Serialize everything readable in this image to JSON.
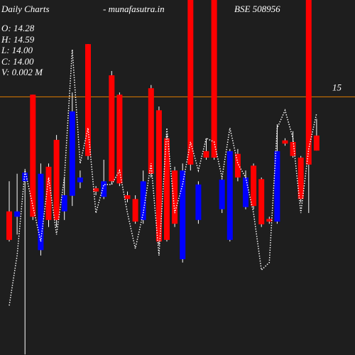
{
  "chart_data": {
    "type": "candlestick",
    "title": "Daily Charts",
    "subtitle": "-  munafasutra.in",
    "symbol": "BSE 508956",
    "info": [
      "O: 14.28",
      "H: 14.59",
      "L: 14.00",
      "C: 14.00",
      "V: 0.002  M"
    ],
    "ylim": [
      10.2,
      16.8
    ],
    "yticks": [
      15
    ],
    "tick_color": "#e07b00",
    "up_color": "#0000ff",
    "down_color": "#ff0000",
    "background": "#1e1e1e",
    "open": [
      12.87,
      12.77,
      13.43,
      15.04,
      12.15,
      13.7,
      14.2,
      12.87,
      13.16,
      13.41,
      15.98,
      13.3,
      13.14,
      15.4,
      15.04,
      13.17,
      13.1,
      12.71,
      15.16,
      14.75,
      14.23,
      13.63,
      11.98,
      16.8,
      12.71,
      13.99,
      16.8,
      12.91,
      12.34,
      13.94,
      12.95,
      13.72,
      13.47,
      12.73,
      12.68,
      14.19,
      14.16,
      13.87,
      16.8,
      14.28
    ],
    "high": [
      13.43,
      13.57,
      13.66,
      15.04,
      13.76,
      13.76,
      14.29,
      13.5,
      15.08,
      13.63,
      15.98,
      13.34,
      13.83,
      15.48,
      15.08,
      13.24,
      13.17,
      13.63,
      15.22,
      14.82,
      14.29,
      13.7,
      13.76,
      16.8,
      13.43,
      14.23,
      16.8,
      13.5,
      14.03,
      14.03,
      13.63,
      13.76,
      13.5,
      12.77,
      14.49,
      14.23,
      14.36,
      13.9,
      16.8,
      14.59
    ],
    "low": [
      12.31,
      12.44,
      10.21,
      12.71,
      12.05,
      12.58,
      12.58,
      12.71,
      12.97,
      13.3,
      13.83,
      13.17,
      13.1,
      13.37,
      13.34,
      13.04,
      12.64,
      12.64,
      13.5,
      12.25,
      12.31,
      12.58,
      11.92,
      13.63,
      12.64,
      13.83,
      13.83,
      12.84,
      12.31,
      13.43,
      12.91,
      12.91,
      12.58,
      12.64,
      12.64,
      14.09,
      13.87,
      13.04,
      12.84,
      14.0
    ],
    "close": [
      12.34,
      12.87,
      13.59,
      12.77,
      13.57,
      12.71,
      12.71,
      13.17,
      14.73,
      13.5,
      13.9,
      13.24,
      13.43,
      13.43,
      13.39,
      13.1,
      12.68,
      13.43,
      13.57,
      12.31,
      12.34,
      12.64,
      13.63,
      13.74,
      13.37,
      13.87,
      13.87,
      13.46,
      13.99,
      13.5,
      13.5,
      12.97,
      12.63,
      12.68,
      13.99,
      14.13,
      13.9,
      13.1,
      13.74,
      14.0
    ],
    "line": {
      "color": "#ffffff",
      "values": [
        11.12,
        12.05,
        13.63,
        12.97,
        12.31,
        13.5,
        12.44,
        13.5,
        15.88,
        13.76,
        14.42,
        12.84,
        13.37,
        13.37,
        13.63,
        12.84,
        12.18,
        12.84,
        13.76,
        12.05,
        14.42,
        12.84,
        13.37,
        14.16,
        13.63,
        14.23,
        14.16,
        13.5,
        14.42,
        13.76,
        13.5,
        12.84,
        11.78,
        11.92,
        14.42,
        14.75,
        14.23,
        12.84,
        14.03,
        14.69
      ]
    }
  }
}
